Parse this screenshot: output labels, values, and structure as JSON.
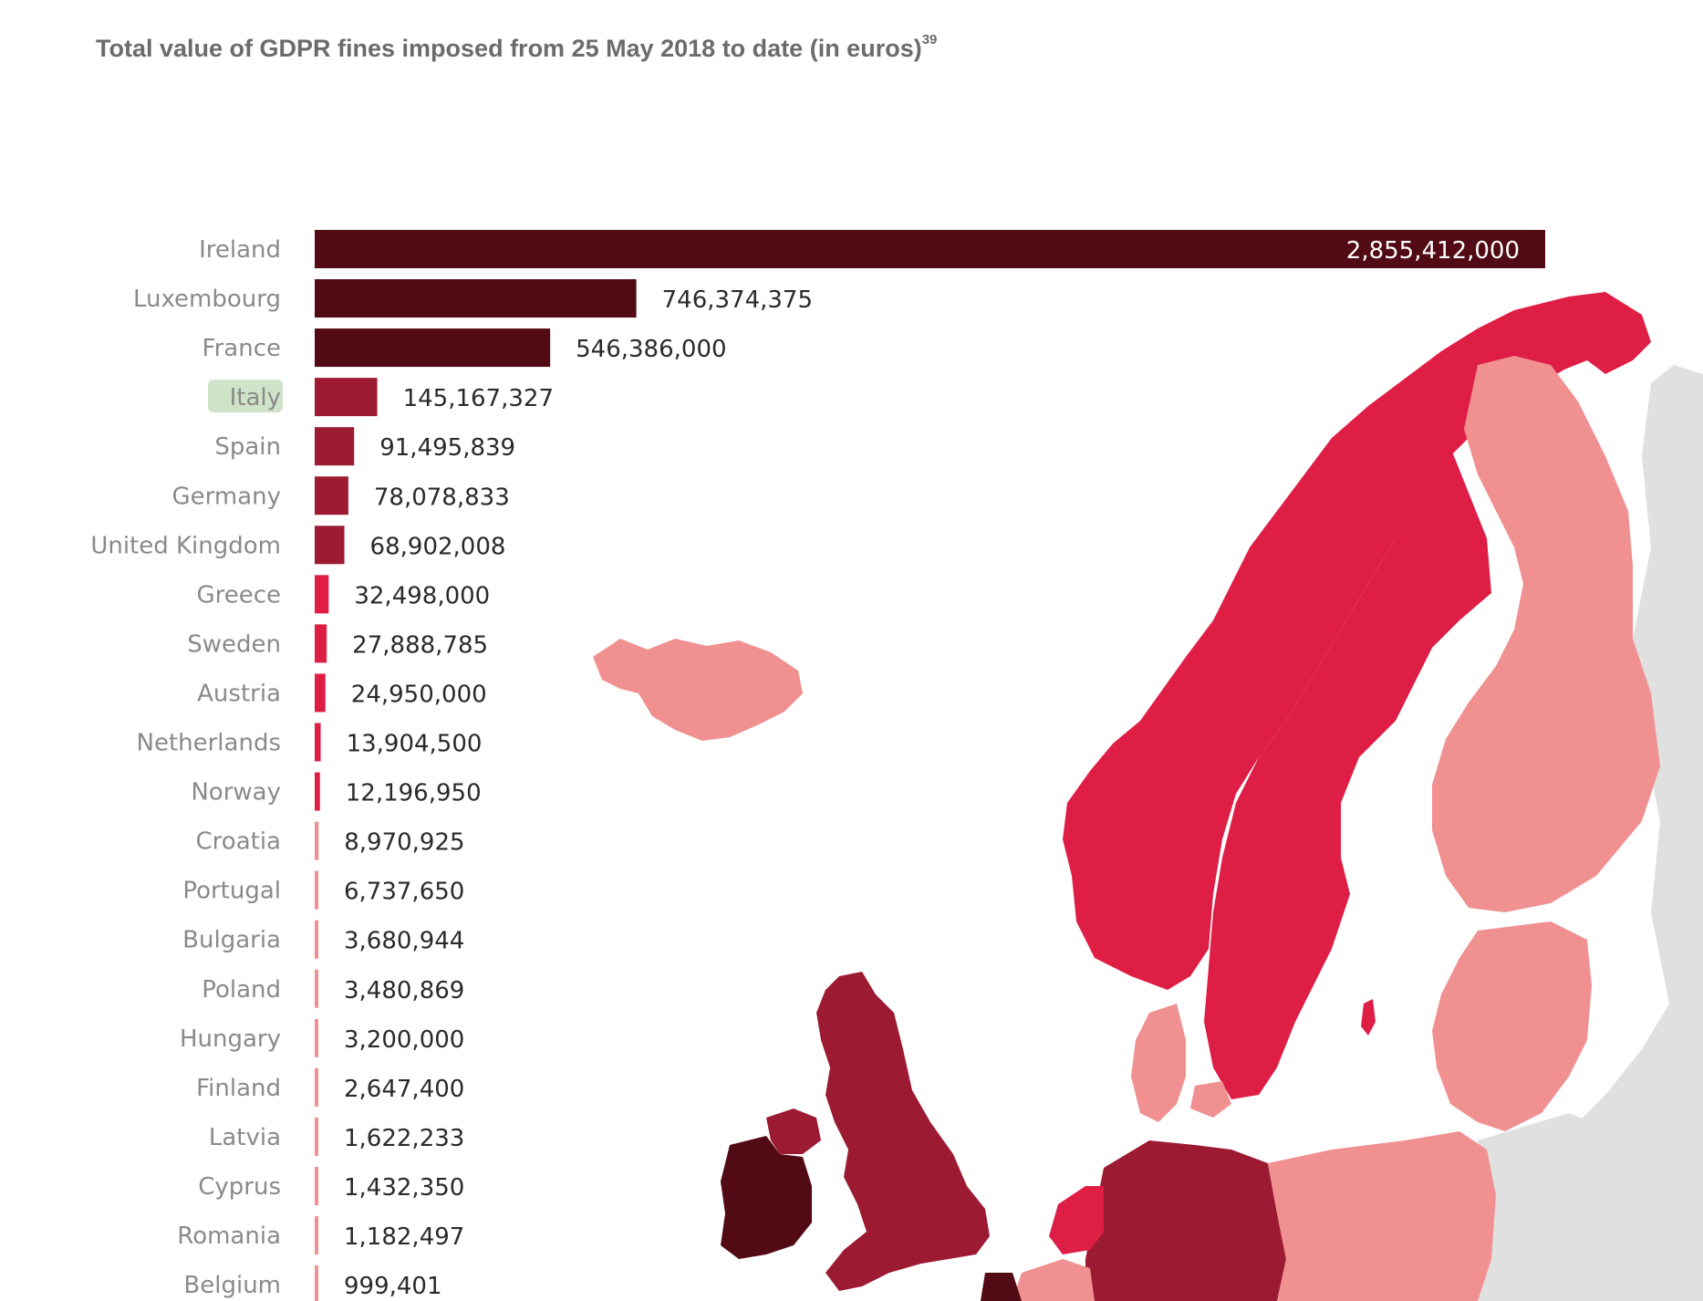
{
  "title": "Total value of GDPR fines imposed from 25 May 2018 to date (in euros)",
  "title_footnote": "39",
  "highlighted_country": "Italy",
  "colors": {
    "tier1": "#520a14",
    "tier2": "#9c1b33",
    "tier3": "#df1e46",
    "tier4": "#f09090",
    "highlight": "#cfe3c8",
    "land_other": "#e0e0e0",
    "label_text": "#8a8a8a",
    "value_text": "#2a2a2a"
  },
  "chart_data": {
    "type": "bar",
    "orientation": "horizontal",
    "title": "Total value of GDPR fines imposed from 25 May 2018 to date (in euros)",
    "xlim": [
      0,
      2855412000
    ],
    "grid": false,
    "categories": [
      "Ireland",
      "Luxembourg",
      "France",
      "Italy",
      "Spain",
      "Germany",
      "United Kingdom",
      "Greece",
      "Sweden",
      "Austria",
      "Netherlands",
      "Norway",
      "Croatia",
      "Portugal",
      "Bulgaria",
      "Poland",
      "Hungary",
      "Finland",
      "Latvia",
      "Cyprus",
      "Romania",
      "Belgium"
    ],
    "values": [
      2855412000,
      746374375,
      546386000,
      145167327,
      91495839,
      78078833,
      68902008,
      32498000,
      27888785,
      24950000,
      13904500,
      12196950,
      8970925,
      6737650,
      3680944,
      3480869,
      3200000,
      2647400,
      1622233,
      1432350,
      1182497,
      999401
    ],
    "value_labels": [
      "2,855,412,000",
      "746,374,375",
      "546,386,000",
      "145,167,327",
      "91,495,839",
      "78,078,833",
      "68,902,008",
      "32,498,000",
      "27,888,785",
      "24,950,000",
      "13,904,500",
      "12,196,950",
      "8,970,925",
      "6,737,650",
      "3,680,944",
      "3,480,869",
      "3,200,000",
      "2,647,400",
      "1,622,233",
      "1,432,350",
      "1,182,497",
      "999,401"
    ]
  }
}
